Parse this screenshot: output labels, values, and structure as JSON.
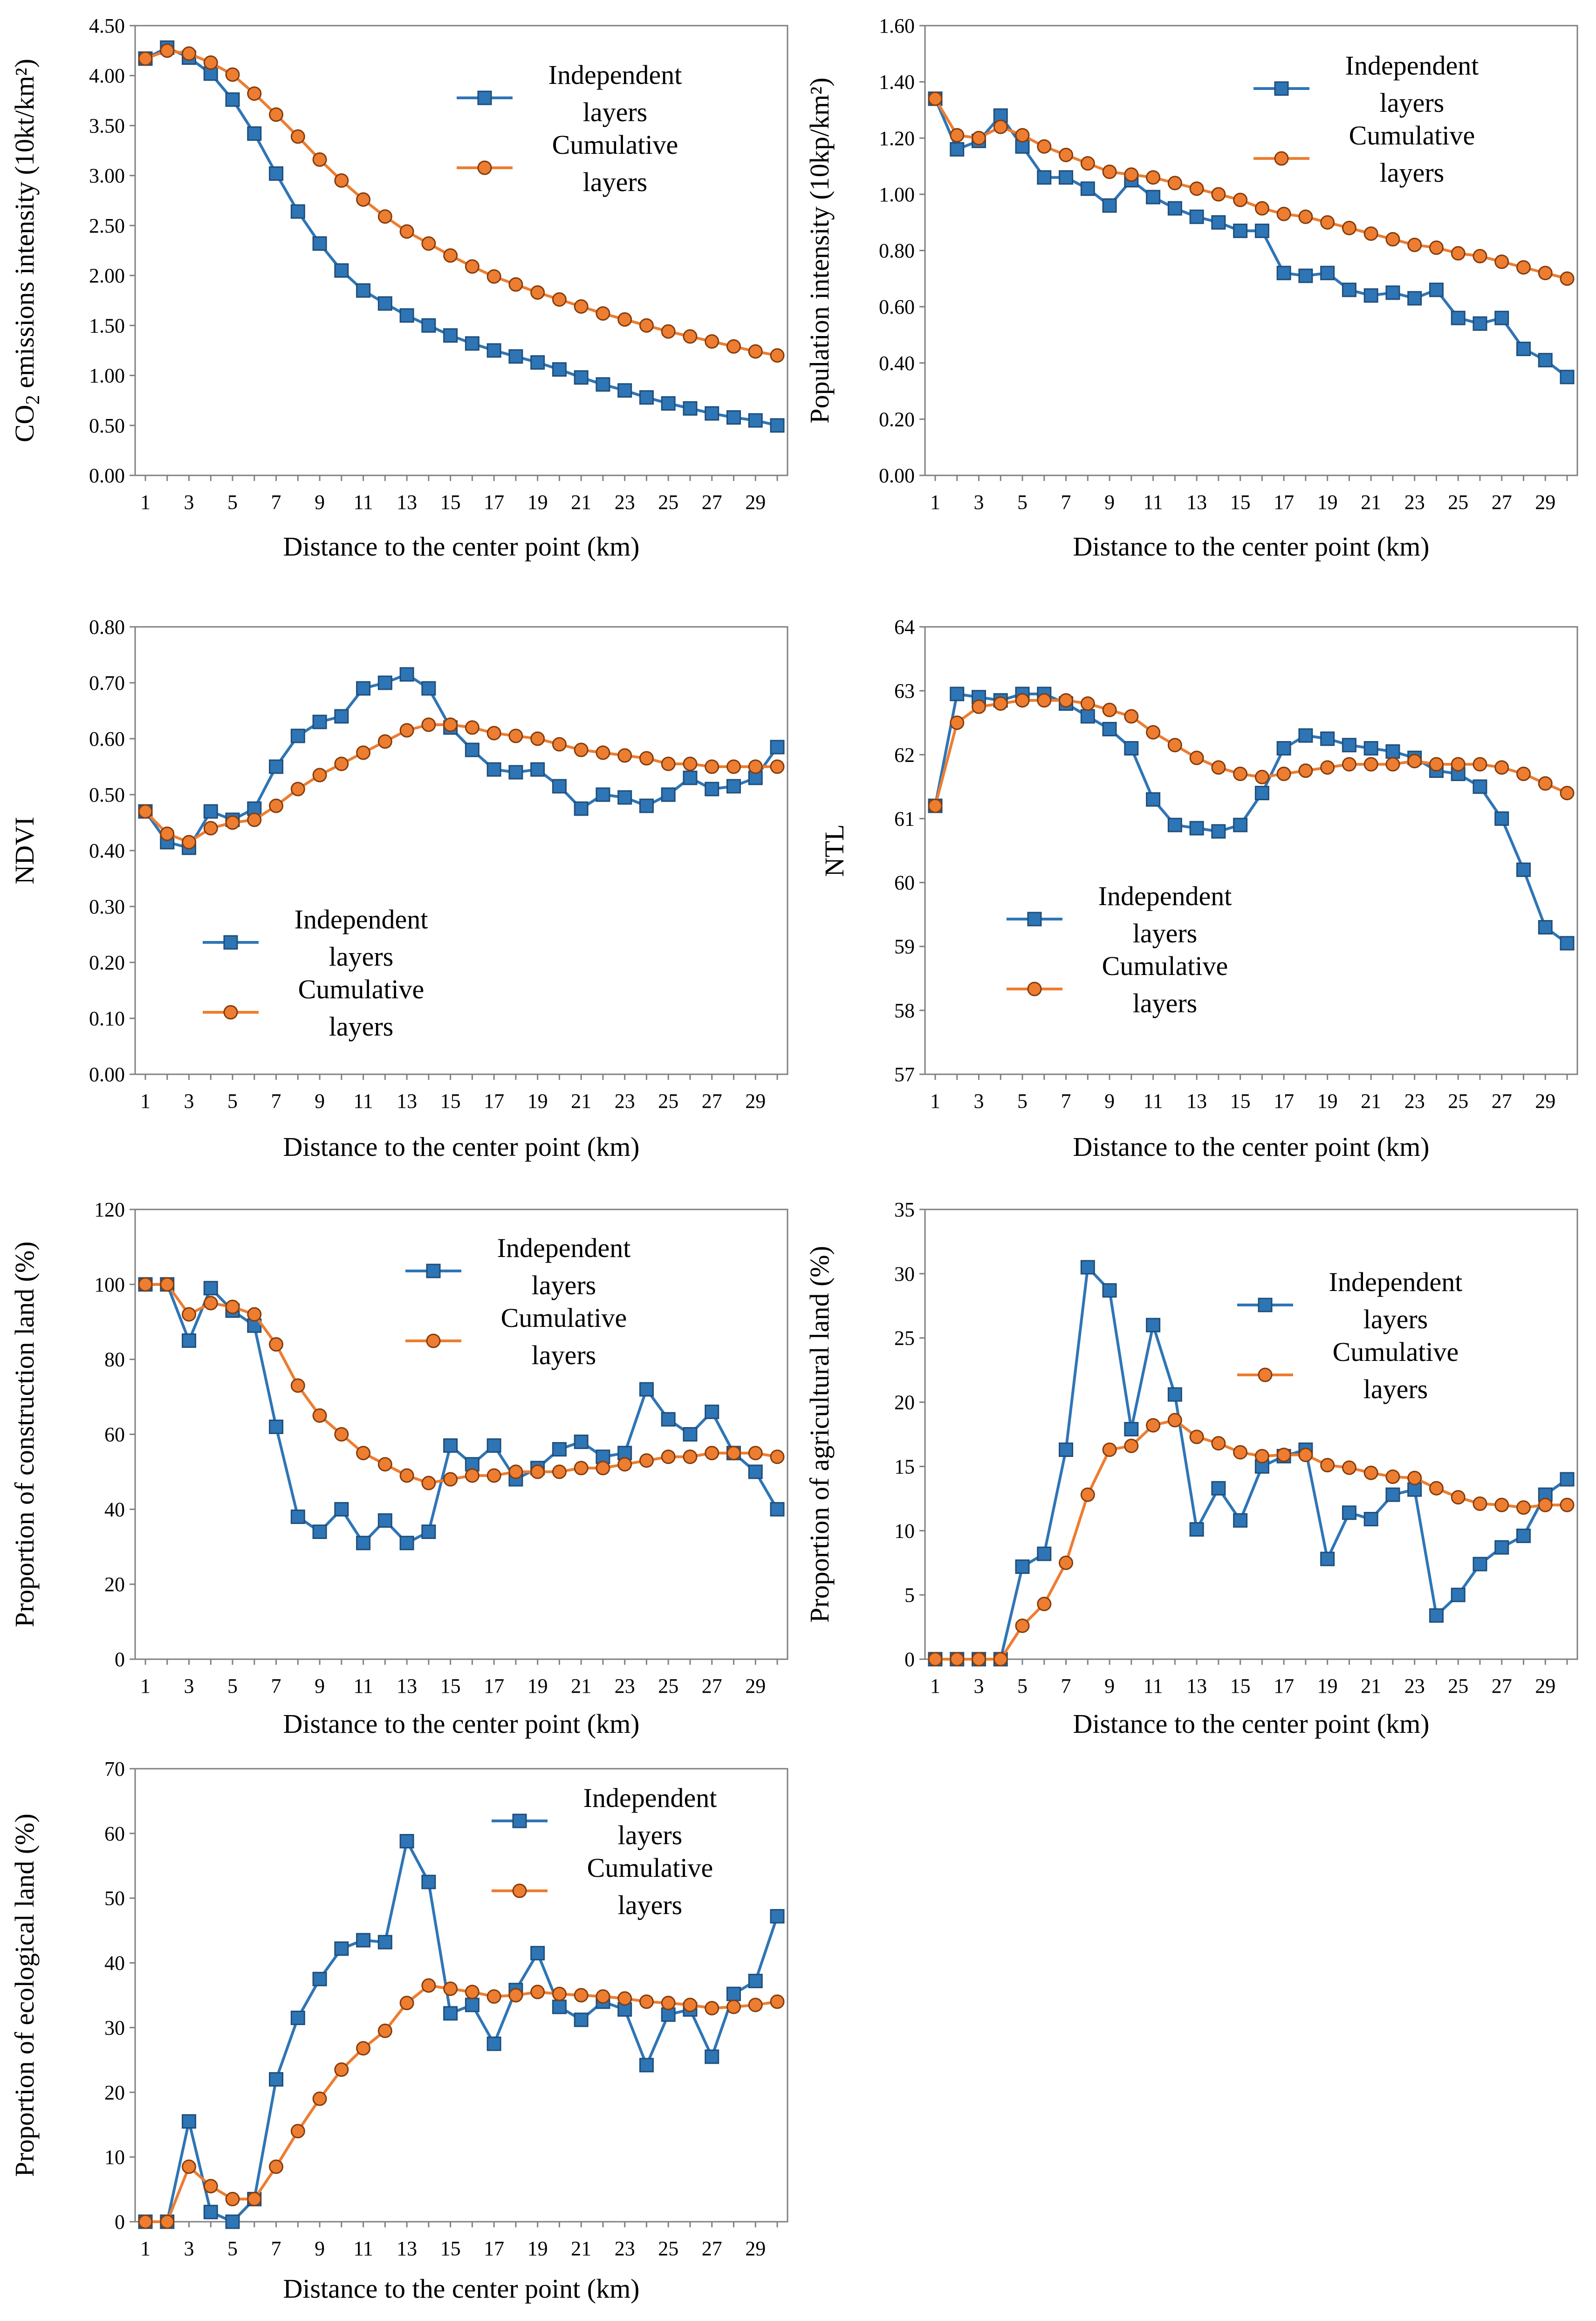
{
  "colors": {
    "independent": "#2E75B6",
    "independent_edge": "#1F4E79",
    "cumulative": "#ED7D31",
    "cumulative_edge": "#843C0C",
    "axis": "#808080",
    "background": "#ffffff"
  },
  "legend": {
    "independent": [
      "Independent",
      "layers"
    ],
    "cumulative": [
      "Cumulative",
      "layers"
    ]
  },
  "chart_data": [
    {
      "id": "co2",
      "type": "line",
      "ylabel": "CO2 emissions intensity (10kt/km²)",
      "ylabel_parts": [
        "CO",
        "2",
        " emissions intensity (10kt/km²)"
      ],
      "xlabel": "Distance to the center point (km)",
      "ylim": [
        0,
        4.5
      ],
      "ystep": 0.5,
      "ydec": 2,
      "x": [
        1,
        2,
        3,
        4,
        5,
        6,
        7,
        8,
        9,
        10,
        11,
        12,
        13,
        14,
        15,
        16,
        17,
        18,
        19,
        20,
        21,
        22,
        23,
        24,
        25,
        26,
        27,
        28,
        29,
        30
      ],
      "xticks": [
        1,
        3,
        5,
        7,
        9,
        11,
        13,
        15,
        17,
        19,
        21,
        23,
        25,
        27,
        29
      ],
      "series": [
        {
          "name": "Independent layers",
          "values": [
            4.17,
            4.28,
            4.18,
            4.02,
            3.76,
            3.42,
            3.02,
            2.64,
            2.32,
            2.05,
            1.85,
            1.72,
            1.6,
            1.5,
            1.4,
            1.32,
            1.25,
            1.19,
            1.13,
            1.06,
            0.98,
            0.91,
            0.85,
            0.78,
            0.72,
            0.67,
            0.62,
            0.58,
            0.55,
            0.5
          ]
        },
        {
          "name": "Cumulative layers",
          "values": [
            4.17,
            4.25,
            4.22,
            4.13,
            4.01,
            3.82,
            3.61,
            3.39,
            3.16,
            2.95,
            2.76,
            2.59,
            2.44,
            2.32,
            2.2,
            2.09,
            1.99,
            1.91,
            1.83,
            1.76,
            1.69,
            1.62,
            1.56,
            1.5,
            1.44,
            1.39,
            1.34,
            1.29,
            1.24,
            1.2
          ]
        }
      ]
    },
    {
      "id": "pop",
      "type": "line",
      "ylabel": "Population intensity (10kp/km²)",
      "xlabel": "Distance to the center point (km)",
      "ylim": [
        0,
        1.6
      ],
      "ystep": 0.2,
      "ydec": 2,
      "x": [
        1,
        2,
        3,
        4,
        5,
        6,
        7,
        8,
        9,
        10,
        11,
        12,
        13,
        14,
        15,
        16,
        17,
        18,
        19,
        20,
        21,
        22,
        23,
        24,
        25,
        26,
        27,
        28,
        29,
        30
      ],
      "xticks": [
        1,
        3,
        5,
        7,
        9,
        11,
        13,
        15,
        17,
        19,
        21,
        23,
        25,
        27,
        29
      ],
      "series": [
        {
          "name": "Independent layers",
          "values": [
            1.34,
            1.16,
            1.19,
            1.28,
            1.17,
            1.06,
            1.06,
            1.02,
            0.96,
            1.05,
            0.99,
            0.95,
            0.92,
            0.9,
            0.87,
            0.87,
            0.72,
            0.71,
            0.72,
            0.66,
            0.64,
            0.65,
            0.63,
            0.66,
            0.56,
            0.54,
            0.56,
            0.45,
            0.41,
            0.35
          ]
        },
        {
          "name": "Cumulative layers",
          "values": [
            1.34,
            1.21,
            1.2,
            1.24,
            1.21,
            1.17,
            1.14,
            1.11,
            1.08,
            1.07,
            1.06,
            1.04,
            1.02,
            1.0,
            0.98,
            0.95,
            0.93,
            0.92,
            0.9,
            0.88,
            0.86,
            0.84,
            0.82,
            0.81,
            0.79,
            0.78,
            0.76,
            0.74,
            0.72,
            0.7
          ]
        }
      ]
    },
    {
      "id": "ndvi",
      "type": "line",
      "ylabel": "NDVI",
      "xlabel": "Distance to the center point (km)",
      "ylim": [
        0,
        0.8
      ],
      "ystep": 0.1,
      "ydec": 2,
      "x": [
        1,
        2,
        3,
        4,
        5,
        6,
        7,
        8,
        9,
        10,
        11,
        12,
        13,
        14,
        15,
        16,
        17,
        18,
        19,
        20,
        21,
        22,
        23,
        24,
        25,
        26,
        27,
        28,
        29,
        30
      ],
      "xticks": [
        1,
        3,
        5,
        7,
        9,
        11,
        13,
        15,
        17,
        19,
        21,
        23,
        25,
        27,
        29
      ],
      "series": [
        {
          "name": "Independent layers",
          "values": [
            0.47,
            0.415,
            0.405,
            0.47,
            0.455,
            0.475,
            0.55,
            0.605,
            0.63,
            0.64,
            0.69,
            0.7,
            0.715,
            0.69,
            0.62,
            0.58,
            0.545,
            0.54,
            0.545,
            0.515,
            0.475,
            0.5,
            0.495,
            0.48,
            0.5,
            0.53,
            0.51,
            0.515,
            0.53,
            0.585
          ]
        },
        {
          "name": "Cumulative layers",
          "values": [
            0.47,
            0.43,
            0.415,
            0.44,
            0.45,
            0.455,
            0.48,
            0.51,
            0.535,
            0.555,
            0.575,
            0.595,
            0.615,
            0.625,
            0.625,
            0.62,
            0.61,
            0.605,
            0.6,
            0.59,
            0.58,
            0.575,
            0.57,
            0.565,
            0.555,
            0.555,
            0.55,
            0.55,
            0.55,
            0.55
          ]
        }
      ]
    },
    {
      "id": "ntl",
      "type": "line",
      "ylabel": "NTL",
      "xlabel": "Distance to the center point (km)",
      "ylim": [
        57,
        64
      ],
      "ystep": 1,
      "ydec": 0,
      "x": [
        1,
        2,
        3,
        4,
        5,
        6,
        7,
        8,
        9,
        10,
        11,
        12,
        13,
        14,
        15,
        16,
        17,
        18,
        19,
        20,
        21,
        22,
        23,
        24,
        25,
        26,
        27,
        28,
        29,
        30
      ],
      "xticks": [
        1,
        3,
        5,
        7,
        9,
        11,
        13,
        15,
        17,
        19,
        21,
        23,
        25,
        27,
        29
      ],
      "series": [
        {
          "name": "Independent layers",
          "values": [
            61.2,
            62.95,
            62.9,
            62.85,
            62.95,
            62.95,
            62.8,
            62.6,
            62.4,
            62.1,
            61.3,
            60.9,
            60.85,
            60.8,
            60.9,
            61.4,
            62.1,
            62.3,
            62.25,
            62.15,
            62.1,
            62.05,
            61.95,
            61.75,
            61.7,
            61.5,
            61.0,
            60.2,
            59.3,
            59.05
          ]
        },
        {
          "name": "Cumulative layers",
          "values": [
            61.2,
            62.5,
            62.75,
            62.8,
            62.85,
            62.85,
            62.85,
            62.8,
            62.7,
            62.6,
            62.35,
            62.15,
            61.95,
            61.8,
            61.7,
            61.65,
            61.7,
            61.75,
            61.8,
            61.85,
            61.85,
            61.85,
            61.9,
            61.85,
            61.85,
            61.85,
            61.8,
            61.7,
            61.55,
            61.4
          ]
        }
      ]
    },
    {
      "id": "construction",
      "type": "line",
      "ylabel": "Proportion of construction land (%)",
      "xlabel": "Distance to the center point (km)",
      "ylim": [
        0,
        120
      ],
      "ystep": 20,
      "ydec": 0,
      "x": [
        1,
        2,
        3,
        4,
        5,
        6,
        7,
        8,
        9,
        10,
        11,
        12,
        13,
        14,
        15,
        16,
        17,
        18,
        19,
        20,
        21,
        22,
        23,
        24,
        25,
        26,
        27,
        28,
        29,
        30
      ],
      "xticks": [
        1,
        3,
        5,
        7,
        9,
        11,
        13,
        15,
        17,
        19,
        21,
        23,
        25,
        27,
        29
      ],
      "series": [
        {
          "name": "Independent layers",
          "values": [
            100,
            100,
            85,
            99,
            93,
            89,
            62,
            38,
            34,
            40,
            31,
            37,
            31,
            34,
            57,
            52,
            57,
            48,
            51,
            56,
            58,
            54,
            55,
            72,
            64,
            60,
            66,
            55,
            50,
            40
          ]
        },
        {
          "name": "Cumulative layers",
          "values": [
            100,
            100,
            92,
            95,
            94,
            92,
            84,
            73,
            65,
            60,
            55,
            52,
            49,
            47,
            48,
            49,
            49,
            50,
            50,
            50,
            51,
            51,
            52,
            53,
            54,
            54,
            55,
            55,
            55,
            54
          ]
        }
      ]
    },
    {
      "id": "agricultural",
      "type": "line",
      "ylabel": "Proportion of agricultural land (%)",
      "xlabel": "Distance to the center point (km)",
      "ylim": [
        0,
        35
      ],
      "ystep": 5,
      "ydec": 0,
      "x": [
        1,
        2,
        3,
        4,
        5,
        6,
        7,
        8,
        9,
        10,
        11,
        12,
        13,
        14,
        15,
        16,
        17,
        18,
        19,
        20,
        21,
        22,
        23,
        24,
        25,
        26,
        27,
        28,
        29,
        30
      ],
      "xticks": [
        1,
        3,
        5,
        7,
        9,
        11,
        13,
        15,
        17,
        19,
        21,
        23,
        25,
        27,
        29
      ],
      "series": [
        {
          "name": "Independent layers",
          "values": [
            0,
            0,
            0,
            0,
            7.2,
            8.2,
            16.3,
            30.5,
            28.7,
            17.9,
            26.0,
            20.6,
            10.1,
            13.3,
            10.8,
            15.0,
            15.8,
            16.3,
            7.8,
            11.4,
            10.9,
            12.8,
            13.2,
            3.4,
            5.0,
            7.4,
            8.7,
            9.6,
            12.8,
            14.0
          ]
        },
        {
          "name": "Cumulative layers",
          "values": [
            0,
            0,
            0,
            0,
            2.6,
            4.3,
            7.5,
            12.8,
            16.3,
            16.6,
            18.2,
            18.6,
            17.3,
            16.8,
            16.1,
            15.8,
            15.9,
            15.9,
            15.1,
            14.9,
            14.5,
            14.2,
            14.1,
            13.3,
            12.6,
            12.1,
            12.0,
            11.8,
            12.0,
            12.0
          ]
        }
      ]
    },
    {
      "id": "ecological",
      "type": "line",
      "ylabel": "Proportion of ecological land (%)",
      "xlabel": "Distance to the center point (km)",
      "ylim": [
        0,
        70
      ],
      "ystep": 10,
      "ydec": 0,
      "x": [
        1,
        2,
        3,
        4,
        5,
        6,
        7,
        8,
        9,
        10,
        11,
        12,
        13,
        14,
        15,
        16,
        17,
        18,
        19,
        20,
        21,
        22,
        23,
        24,
        25,
        26,
        27,
        28,
        29,
        30
      ],
      "xticks": [
        1,
        3,
        5,
        7,
        9,
        11,
        13,
        15,
        17,
        19,
        21,
        23,
        25,
        27,
        29
      ],
      "series": [
        {
          "name": "Independent layers",
          "values": [
            0,
            0,
            15.5,
            1.5,
            0,
            3.5,
            22,
            31.5,
            37.5,
            42.2,
            43.5,
            43.2,
            58.8,
            52.5,
            32.2,
            33.5,
            27.5,
            35.8,
            41.5,
            33.2,
            31.2,
            34.0,
            32.8,
            24.2,
            32.0,
            32.8,
            25.5,
            35.2,
            37.2,
            47.2
          ]
        },
        {
          "name": "Cumulative layers",
          "values": [
            0,
            0,
            8.5,
            5.5,
            3.5,
            3.5,
            8.5,
            14,
            19,
            23.5,
            26.8,
            29.5,
            33.8,
            36.5,
            36.0,
            35.5,
            34.8,
            35.0,
            35.5,
            35.2,
            35.0,
            34.8,
            34.5,
            34.0,
            33.8,
            33.5,
            33.0,
            33.2,
            33.5,
            34.0
          ]
        }
      ]
    }
  ]
}
